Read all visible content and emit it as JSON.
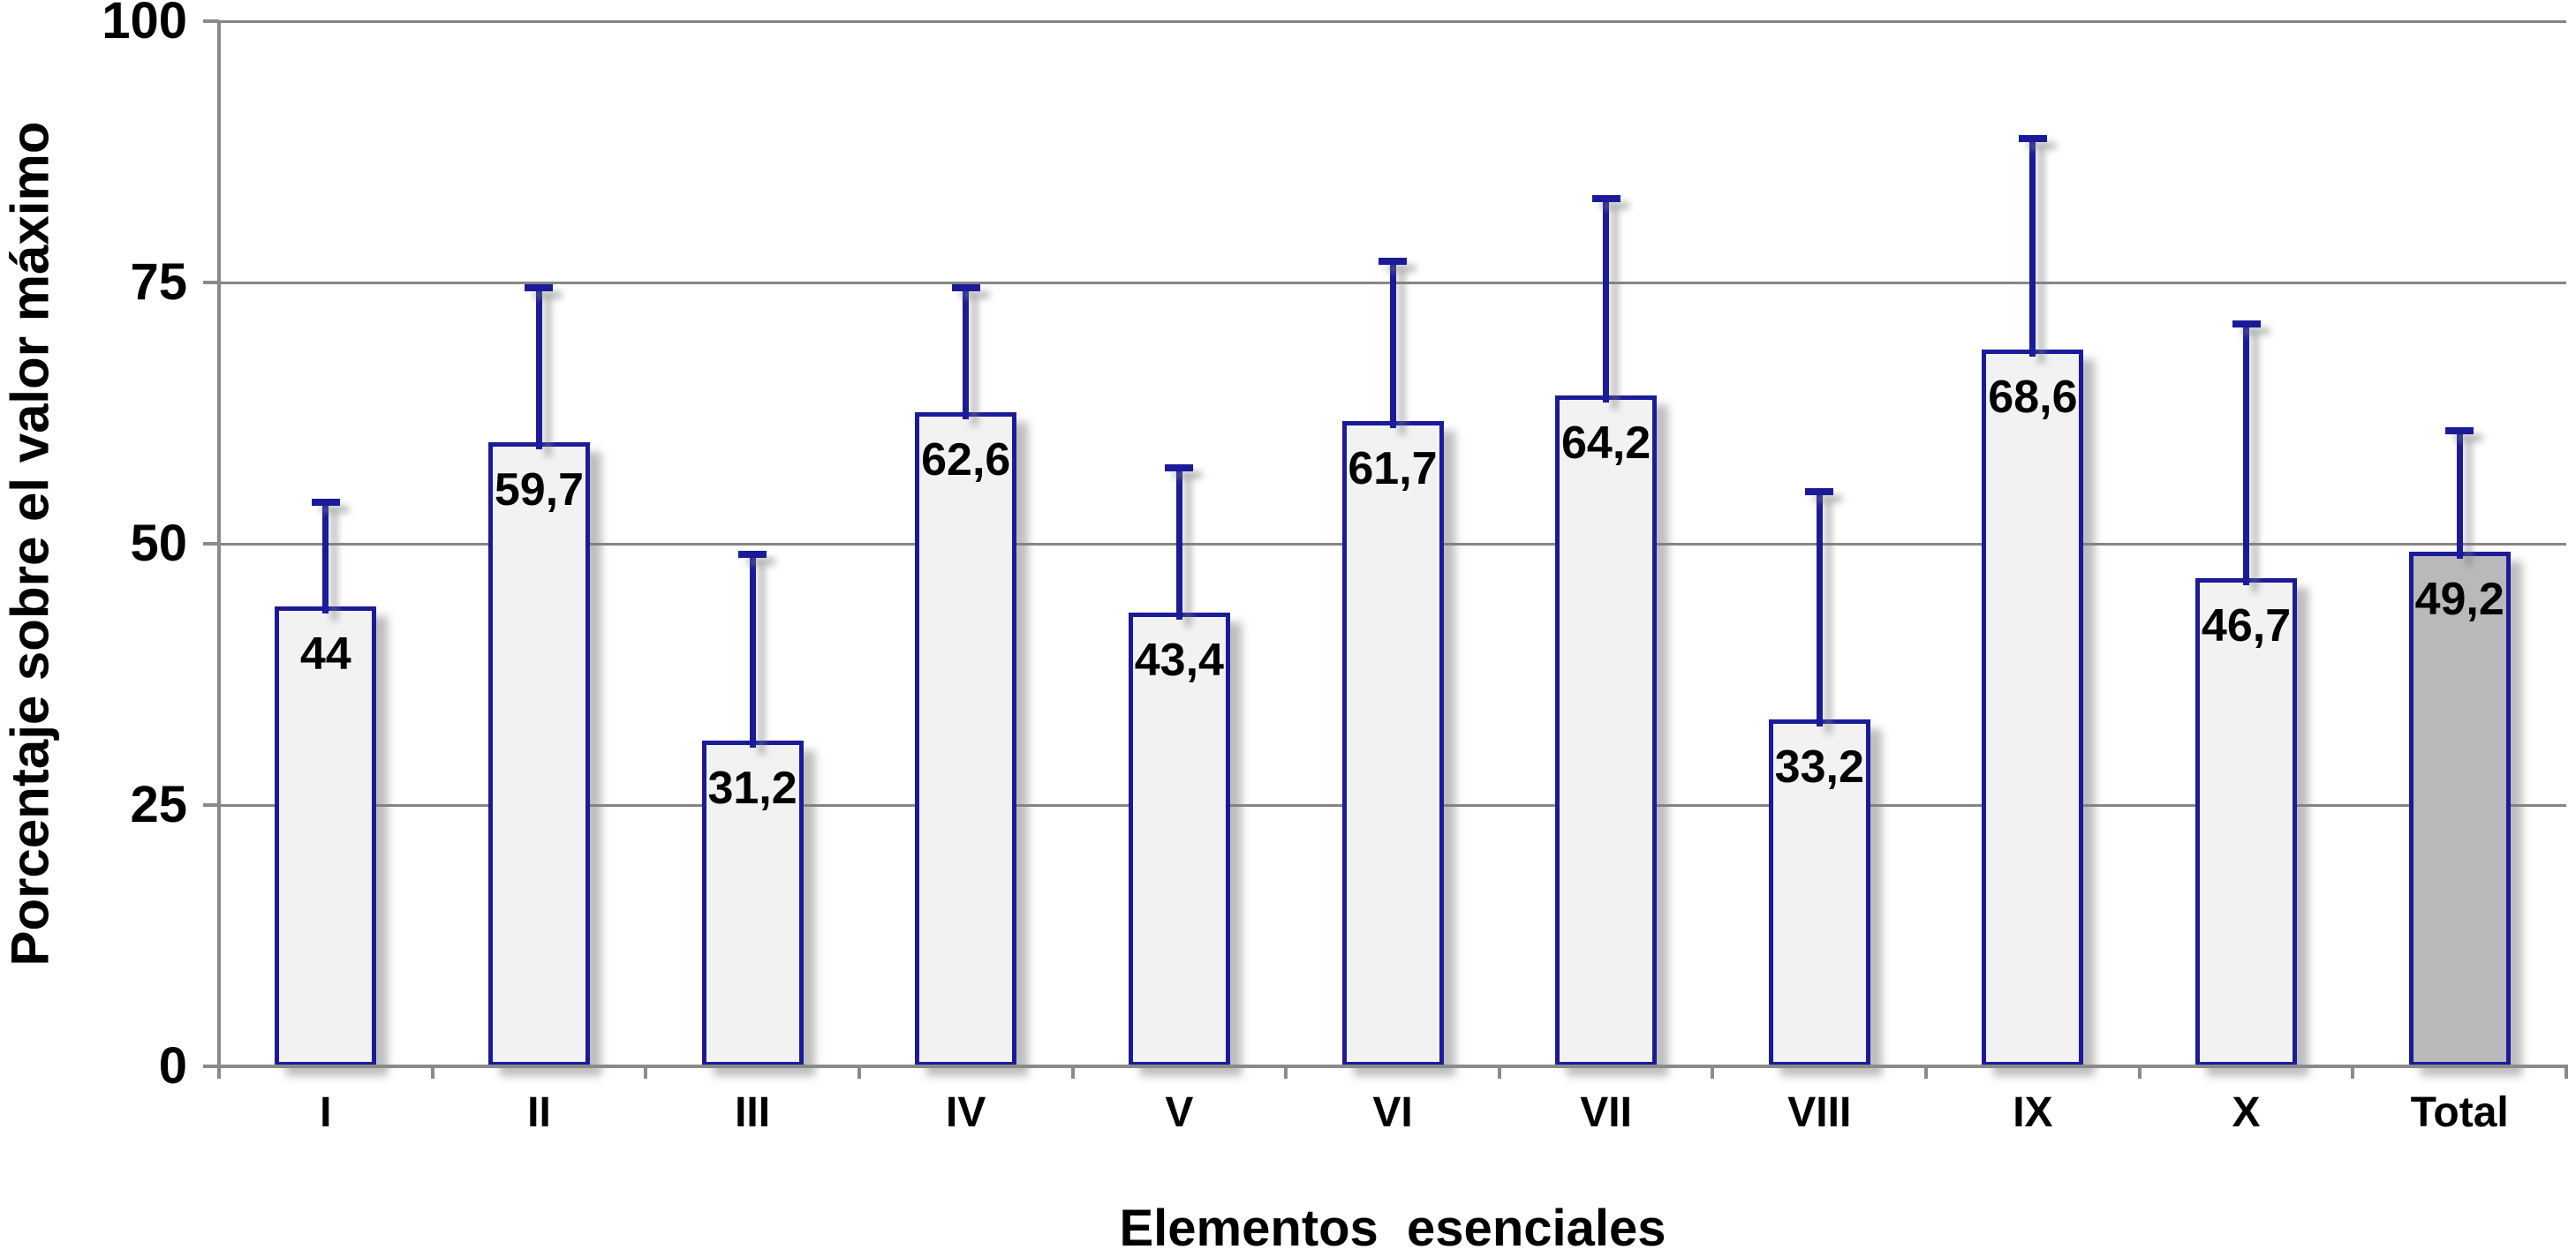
{
  "chart_data": {
    "type": "bar",
    "title": "",
    "xlabel": "Elementos  esenciales",
    "ylabel": "Porcentaje sobre el valor máximo",
    "categories": [
      "I",
      "II",
      "III",
      "IV",
      "V",
      "VI",
      "VII",
      "VIII",
      "IX",
      "X",
      "Total"
    ],
    "values": [
      44,
      59.7,
      31.2,
      62.6,
      43.4,
      61.7,
      64.2,
      33.2,
      68.6,
      46.7,
      49.2
    ],
    "value_labels": [
      "44",
      "59,7",
      "31,2",
      "62,6",
      "43,4",
      "61,7",
      "64,2",
      "33,2",
      "68,6",
      "46,7",
      "49,2"
    ],
    "error_bar_tops": [
      54,
      74.5,
      49,
      74.5,
      57.3,
      77,
      83,
      55,
      88.8,
      71,
      60.8
    ],
    "y_ticks": [
      0,
      25,
      50,
      75,
      100
    ],
    "ylim": [
      0,
      100
    ],
    "grid": "horizontal-only",
    "legend": "none",
    "highlight_category": "Total",
    "colors": {
      "bar_fill": "#f2f2f2",
      "highlight_bar_fill": "#b9b9bb",
      "bar_border": "#1b1b9a",
      "gridline": "#868686",
      "axis": "#8a8a8a",
      "text": "#000000",
      "background": "#ffffff"
    }
  }
}
